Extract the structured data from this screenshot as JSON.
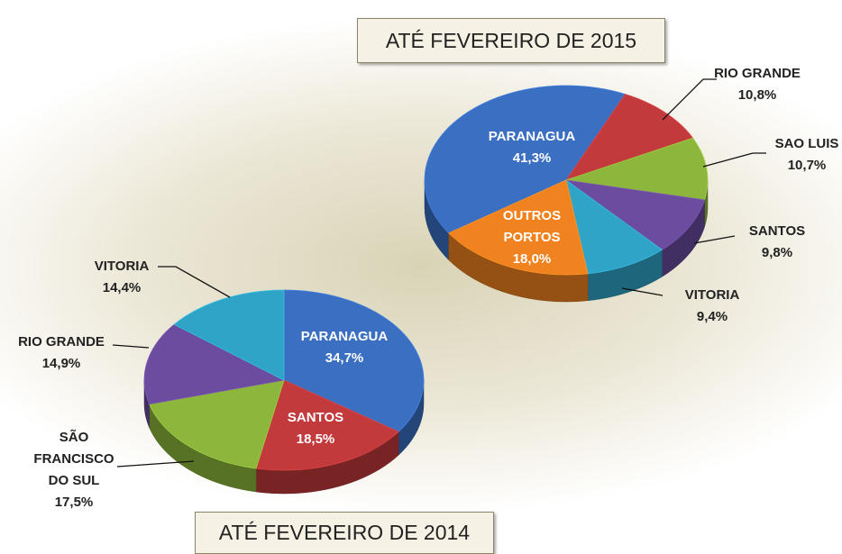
{
  "chart_data": [
    {
      "type": "pie",
      "title": "ATÉ FEVEREIRO DE 2015",
      "categories": [
        "PARANAGUA",
        "RIO GRANDE",
        "SAO LUIS",
        "SANTOS",
        "VITORIA",
        "OUTROS PORTOS"
      ],
      "values": [
        41.3,
        10.8,
        10.7,
        9.8,
        9.4,
        18.0
      ],
      "value_labels": [
        "41,3%",
        "10,8%",
        "10,7%",
        "9,8%",
        "9,4%",
        "18,0%"
      ],
      "colors": [
        "#3a6fc2",
        "#c23a3c",
        "#8cb63c",
        "#6b4c9e",
        "#2fa4c6",
        "#f0821f"
      ]
    },
    {
      "type": "pie",
      "title": "ATÉ FEVEREIRO DE 2014",
      "categories": [
        "PARANAGUA",
        "SANTOS",
        "SÃO FRANCISCO DO SUL",
        "RIO GRANDE",
        "VITORIA"
      ],
      "values": [
        34.7,
        18.5,
        17.5,
        14.9,
        14.4
      ],
      "value_labels": [
        "34,7%",
        "18,5%",
        "17,5%",
        "14,9%",
        "14,4%"
      ],
      "colors": [
        "#3a6fc2",
        "#c23a3c",
        "#8cb63c",
        "#6b4c9e",
        "#2fa4c6"
      ]
    }
  ]
}
